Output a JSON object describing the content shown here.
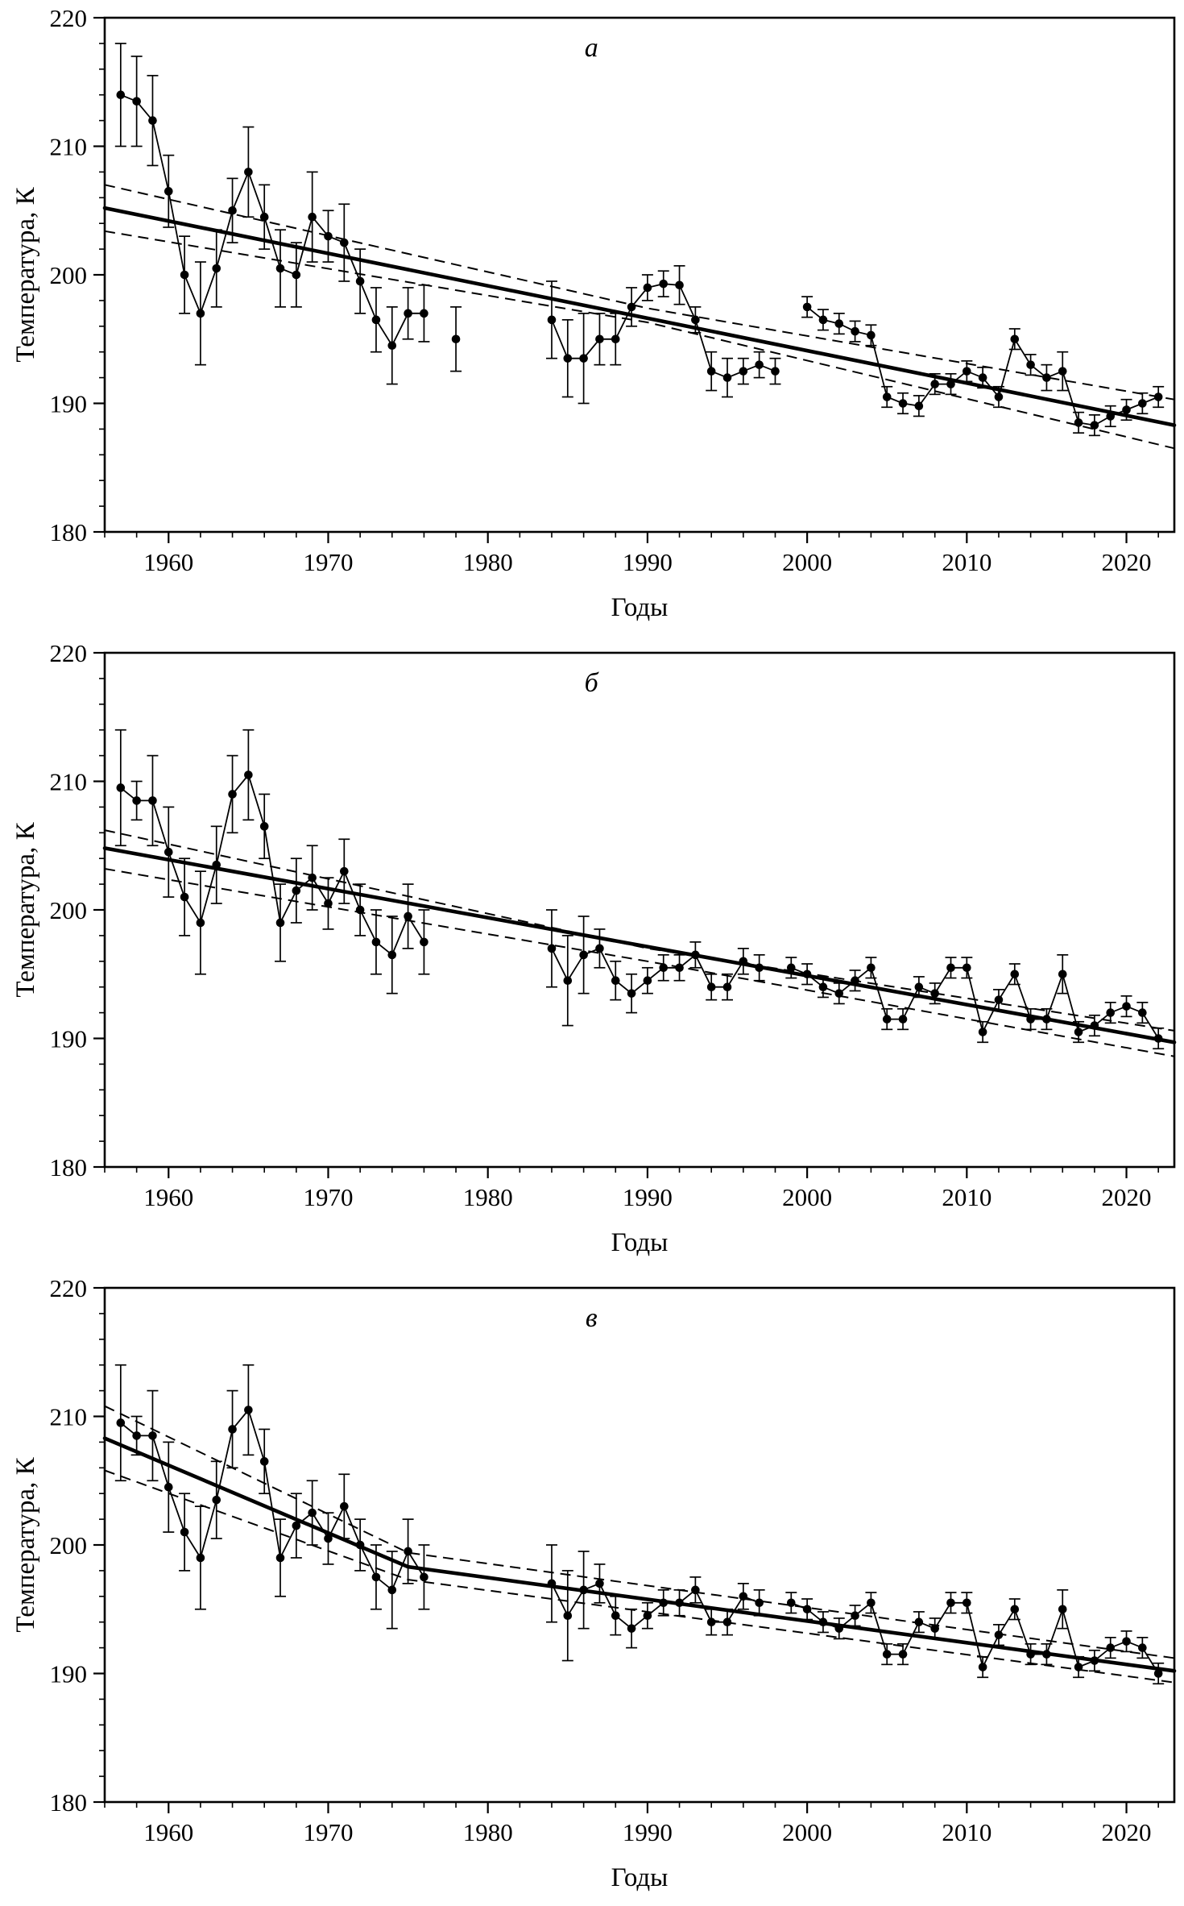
{
  "figure": {
    "background": "#ffffff",
    "ink_color": "#000000",
    "panel_labels": [
      "а",
      "б",
      "в"
    ]
  },
  "chart_data": [
    {
      "type": "line",
      "panel_label": "а",
      "xlabel": "Годы",
      "ylabel": "Температура, К",
      "xlim": [
        1956,
        2023
      ],
      "ylim": [
        180,
        220
      ],
      "xticks": [
        1960,
        1970,
        1980,
        1990,
        2000,
        2010,
        2020
      ],
      "yticks": [
        180,
        190,
        200,
        210,
        220
      ],
      "xtick_minor_step": 2,
      "ytick_minor_step": 2,
      "grid": false,
      "legend": "none",
      "marker": "filled-circle",
      "points": [
        [
          1957,
          214.0,
          4.0
        ],
        [
          1958,
          213.5,
          3.5
        ],
        [
          1959,
          212.0,
          3.5
        ],
        [
          1960,
          206.5,
          2.8
        ],
        [
          1961,
          200.0,
          3.0
        ],
        [
          1962,
          197.0,
          4.0
        ],
        [
          1963,
          200.5,
          3.0
        ],
        [
          1964,
          205.0,
          2.5
        ],
        [
          1965,
          208.0,
          3.5
        ],
        [
          1966,
          204.5,
          2.5
        ],
        [
          1967,
          200.5,
          3.0
        ],
        [
          1968,
          200.0,
          2.5
        ],
        [
          1969,
          204.5,
          3.5
        ],
        [
          1970,
          203.0,
          2.0
        ],
        [
          1971,
          202.5,
          3.0
        ],
        [
          1972,
          199.5,
          2.5
        ],
        [
          1973,
          196.5,
          2.5
        ],
        [
          1974,
          194.5,
          3.0
        ],
        [
          1975,
          197.0,
          2.0
        ],
        [
          1976,
          197.0,
          2.2
        ],
        [
          1978,
          195.0,
          2.5
        ],
        [
          1984,
          196.5,
          3.0
        ],
        [
          1985,
          193.5,
          3.0
        ],
        [
          1986,
          193.5,
          3.5
        ],
        [
          1987,
          195.0,
          2.0
        ],
        [
          1988,
          195.0,
          2.0
        ],
        [
          1989,
          197.5,
          1.5
        ],
        [
          1990,
          199.0,
          1.0
        ],
        [
          1991,
          199.3,
          1.0
        ],
        [
          1992,
          199.2,
          1.5
        ],
        [
          1993,
          196.5,
          1.0
        ],
        [
          1994,
          192.5,
          1.5
        ],
        [
          1995,
          192.0,
          1.5
        ],
        [
          1996,
          192.5,
          1.0
        ],
        [
          1997,
          193.0,
          1.0
        ],
        [
          1998,
          192.5,
          1.0
        ],
        [
          2000,
          197.5,
          0.8
        ],
        [
          2001,
          196.5,
          0.8
        ],
        [
          2002,
          196.2,
          0.8
        ],
        [
          2003,
          195.6,
          0.8
        ],
        [
          2004,
          195.3,
          0.8
        ],
        [
          2005,
          190.5,
          0.8
        ],
        [
          2006,
          190.0,
          0.8
        ],
        [
          2007,
          189.8,
          0.8
        ],
        [
          2008,
          191.5,
          0.8
        ],
        [
          2009,
          191.5,
          0.8
        ],
        [
          2010,
          192.5,
          0.8
        ],
        [
          2011,
          192.0,
          0.8
        ],
        [
          2012,
          190.5,
          0.8
        ],
        [
          2013,
          195.0,
          0.8
        ],
        [
          2014,
          193.0,
          0.8
        ],
        [
          2015,
          192.0,
          1.0
        ],
        [
          2016,
          192.5,
          1.5
        ],
        [
          2017,
          188.5,
          0.8
        ],
        [
          2018,
          188.3,
          0.8
        ],
        [
          2019,
          189.0,
          0.8
        ],
        [
          2020,
          189.5,
          0.8
        ],
        [
          2021,
          190.0,
          0.8
        ],
        [
          2022,
          190.5,
          0.8
        ]
      ],
      "trend_line": [
        [
          1956,
          205.2
        ],
        [
          2023,
          188.3
        ]
      ],
      "ci_upper": [
        [
          1956,
          207.0
        ],
        [
          1990,
          197.4
        ],
        [
          2023,
          190.3
        ]
      ],
      "ci_lower": [
        [
          1956,
          203.4
        ],
        [
          1990,
          196.3
        ],
        [
          2023,
          186.5
        ]
      ]
    },
    {
      "type": "line",
      "panel_label": "б",
      "xlabel": "Годы",
      "ylabel": "Температура, К",
      "xlim": [
        1956,
        2023
      ],
      "ylim": [
        180,
        220
      ],
      "xticks": [
        1960,
        1970,
        1980,
        1990,
        2000,
        2010,
        2020
      ],
      "yticks": [
        180,
        190,
        200,
        210,
        220
      ],
      "xtick_minor_step": 2,
      "ytick_minor_step": 2,
      "grid": false,
      "legend": "none",
      "marker": "filled-circle",
      "points": [
        [
          1957,
          209.5,
          4.5
        ],
        [
          1958,
          208.5,
          1.5
        ],
        [
          1959,
          208.5,
          3.5
        ],
        [
          1960,
          204.5,
          3.5
        ],
        [
          1961,
          201.0,
          3.0
        ],
        [
          1962,
          199.0,
          4.0
        ],
        [
          1963,
          203.5,
          3.0
        ],
        [
          1964,
          209.0,
          3.0
        ],
        [
          1965,
          210.5,
          3.5
        ],
        [
          1966,
          206.5,
          2.5
        ],
        [
          1967,
          199.0,
          3.0
        ],
        [
          1968,
          201.5,
          2.5
        ],
        [
          1969,
          202.5,
          2.5
        ],
        [
          1970,
          200.5,
          2.0
        ],
        [
          1971,
          203.0,
          2.5
        ],
        [
          1972,
          200.0,
          2.0
        ],
        [
          1973,
          197.5,
          2.5
        ],
        [
          1974,
          196.5,
          3.0
        ],
        [
          1975,
          199.5,
          2.5
        ],
        [
          1976,
          197.5,
          2.5
        ],
        [
          1984,
          197.0,
          3.0
        ],
        [
          1985,
          194.5,
          3.5
        ],
        [
          1986,
          196.5,
          3.0
        ],
        [
          1987,
          197.0,
          1.5
        ],
        [
          1988,
          194.5,
          1.5
        ],
        [
          1989,
          193.5,
          1.5
        ],
        [
          1990,
          194.5,
          1.0
        ],
        [
          1991,
          195.5,
          1.0
        ],
        [
          1992,
          195.5,
          1.0
        ],
        [
          1993,
          196.5,
          1.0
        ],
        [
          1994,
          194.0,
          1.0
        ],
        [
          1995,
          194.0,
          1.0
        ],
        [
          1996,
          196.0,
          1.0
        ],
        [
          1997,
          195.5,
          1.0
        ],
        [
          1999,
          195.5,
          0.8
        ],
        [
          2000,
          195.0,
          0.8
        ],
        [
          2001,
          194.0,
          0.8
        ],
        [
          2002,
          193.5,
          0.8
        ],
        [
          2003,
          194.5,
          0.8
        ],
        [
          2004,
          195.5,
          0.8
        ],
        [
          2005,
          191.5,
          0.8
        ],
        [
          2006,
          191.5,
          0.8
        ],
        [
          2007,
          194.0,
          0.8
        ],
        [
          2008,
          193.5,
          0.8
        ],
        [
          2009,
          195.5,
          0.8
        ],
        [
          2010,
          195.5,
          0.8
        ],
        [
          2011,
          190.5,
          0.8
        ],
        [
          2012,
          193.0,
          0.8
        ],
        [
          2013,
          195.0,
          0.8
        ],
        [
          2014,
          191.5,
          0.8
        ],
        [
          2015,
          191.5,
          0.8
        ],
        [
          2016,
          195.0,
          1.5
        ],
        [
          2017,
          190.5,
          0.8
        ],
        [
          2018,
          191.0,
          0.8
        ],
        [
          2019,
          192.0,
          0.8
        ],
        [
          2020,
          192.5,
          0.8
        ],
        [
          2021,
          192.0,
          0.8
        ],
        [
          2022,
          190.0,
          0.8
        ]
      ],
      "trend_line": [
        [
          1956,
          204.8
        ],
        [
          2023,
          189.7
        ]
      ],
      "ci_upper": [
        [
          1956,
          206.2
        ],
        [
          1990,
          197.0
        ],
        [
          2023,
          190.6
        ]
      ],
      "ci_lower": [
        [
          1956,
          203.2
        ],
        [
          1990,
          196.0
        ],
        [
          2023,
          188.6
        ]
      ]
    },
    {
      "type": "line",
      "panel_label": "в",
      "xlabel": "Годы",
      "ylabel": "Температура, К",
      "xlim": [
        1956,
        2023
      ],
      "ylim": [
        180,
        220
      ],
      "xticks": [
        1960,
        1970,
        1980,
        1990,
        2000,
        2010,
        2020
      ],
      "yticks": [
        180,
        190,
        200,
        210,
        220
      ],
      "xtick_minor_step": 2,
      "ytick_minor_step": 2,
      "grid": false,
      "legend": "none",
      "marker": "filled-circle",
      "points": [
        [
          1957,
          209.5,
          4.5
        ],
        [
          1958,
          208.5,
          1.5
        ],
        [
          1959,
          208.5,
          3.5
        ],
        [
          1960,
          204.5,
          3.5
        ],
        [
          1961,
          201.0,
          3.0
        ],
        [
          1962,
          199.0,
          4.0
        ],
        [
          1963,
          203.5,
          3.0
        ],
        [
          1964,
          209.0,
          3.0
        ],
        [
          1965,
          210.5,
          3.5
        ],
        [
          1966,
          206.5,
          2.5
        ],
        [
          1967,
          199.0,
          3.0
        ],
        [
          1968,
          201.5,
          2.5
        ],
        [
          1969,
          202.5,
          2.5
        ],
        [
          1970,
          200.5,
          2.0
        ],
        [
          1971,
          203.0,
          2.5
        ],
        [
          1972,
          200.0,
          2.0
        ],
        [
          1973,
          197.5,
          2.5
        ],
        [
          1974,
          196.5,
          3.0
        ],
        [
          1975,
          199.5,
          2.5
        ],
        [
          1976,
          197.5,
          2.5
        ],
        [
          1984,
          197.0,
          3.0
        ],
        [
          1985,
          194.5,
          3.5
        ],
        [
          1986,
          196.5,
          3.0
        ],
        [
          1987,
          197.0,
          1.5
        ],
        [
          1988,
          194.5,
          1.5
        ],
        [
          1989,
          193.5,
          1.5
        ],
        [
          1990,
          194.5,
          1.0
        ],
        [
          1991,
          195.5,
          1.0
        ],
        [
          1992,
          195.5,
          1.0
        ],
        [
          1993,
          196.5,
          1.0
        ],
        [
          1994,
          194.0,
          1.0
        ],
        [
          1995,
          194.0,
          1.0
        ],
        [
          1996,
          196.0,
          1.0
        ],
        [
          1997,
          195.5,
          1.0
        ],
        [
          1999,
          195.5,
          0.8
        ],
        [
          2000,
          195.0,
          0.8
        ],
        [
          2001,
          194.0,
          0.8
        ],
        [
          2002,
          193.5,
          0.8
        ],
        [
          2003,
          194.5,
          0.8
        ],
        [
          2004,
          195.5,
          0.8
        ],
        [
          2005,
          191.5,
          0.8
        ],
        [
          2006,
          191.5,
          0.8
        ],
        [
          2007,
          194.0,
          0.8
        ],
        [
          2008,
          193.5,
          0.8
        ],
        [
          2009,
          195.5,
          0.8
        ],
        [
          2010,
          195.5,
          0.8
        ],
        [
          2011,
          190.5,
          0.8
        ],
        [
          2012,
          193.0,
          0.8
        ],
        [
          2013,
          195.0,
          0.8
        ],
        [
          2014,
          191.5,
          0.8
        ],
        [
          2015,
          191.5,
          0.8
        ],
        [
          2016,
          195.0,
          1.5
        ],
        [
          2017,
          190.5,
          0.8
        ],
        [
          2018,
          191.0,
          0.8
        ],
        [
          2019,
          192.0,
          0.8
        ],
        [
          2020,
          192.5,
          0.8
        ],
        [
          2021,
          192.0,
          0.8
        ],
        [
          2022,
          190.0,
          0.8
        ]
      ],
      "trend_line": [
        [
          1956,
          208.3
        ],
        [
          1975,
          198.3
        ],
        [
          2023,
          190.2
        ]
      ],
      "ci_upper": [
        [
          1956,
          210.8
        ],
        [
          1975,
          199.4
        ],
        [
          2023,
          191.2
        ]
      ],
      "ci_lower": [
        [
          1956,
          205.8
        ],
        [
          1975,
          197.3
        ],
        [
          2023,
          189.3
        ]
      ]
    }
  ]
}
